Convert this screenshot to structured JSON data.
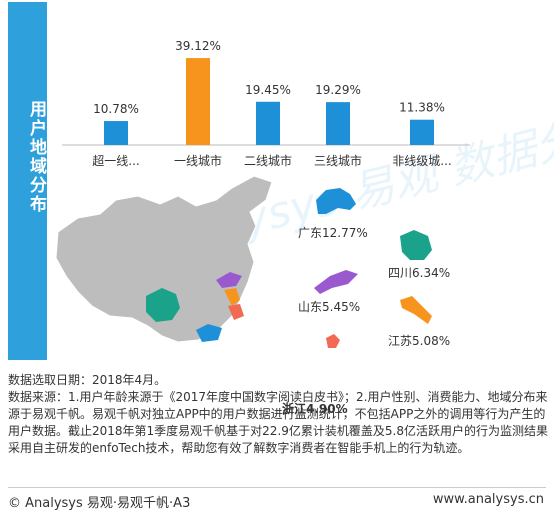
{
  "side_title": "用户地域分布",
  "watermark": "Analysys 易观 数据分析",
  "chart_data": {
    "type": "bar",
    "categories": [
      "超一线...",
      "一线城市",
      "二线城市",
      "三线城市",
      "非线级城..."
    ],
    "values": [
      10.78,
      39.12,
      19.45,
      19.29,
      11.38
    ],
    "value_labels": [
      "10.78%",
      "39.12%",
      "19.45%",
      "19.29%",
      "11.38%"
    ],
    "highlight_index": 1,
    "colors": {
      "default": "#1e90d8",
      "highlight": "#f7941d"
    },
    "ylim": [
      0,
      45
    ],
    "grid": false
  },
  "map": {
    "provinces": [
      {
        "name": "广东",
        "label": "广东12.77%",
        "value": 12.77,
        "color": "#1e90d8"
      },
      {
        "name": "四川",
        "label": "四川6.34%",
        "value": 6.34,
        "color": "#1aa38a"
      },
      {
        "name": "山东",
        "label": "山东5.45%",
        "value": 5.45,
        "color": "#9b59d0"
      },
      {
        "name": "江苏",
        "label": "江苏5.08%",
        "value": 5.08,
        "color": "#f7941d"
      },
      {
        "name": "浙江",
        "label": "浙江4.90%",
        "value": 4.9,
        "color": "#f26a52"
      }
    ]
  },
  "notes": {
    "date": "数据选取日期：2018年4月。",
    "source": "数据来源：1.用户年龄来源于《2017年度中国数字阅读白皮书》；2.用户性别、消费能力、地域分布来源于易观千帆。易观千帆对独立APP中的用户数据进行监测统计，不包括APP之外的调用等行为产生的用户数据。截止2018年第1季度易观千帆基于对22.9亿累计装机覆盖及5.8亿活跃用户的行为监测结果采用自主研发的enfoTech技术，帮助您有效了解数字消费者在智能手机上的行为轨迹。"
  },
  "footer": {
    "left": "© Analysys 易观·易观千帆·A3",
    "right": "www.analysys.cn"
  }
}
